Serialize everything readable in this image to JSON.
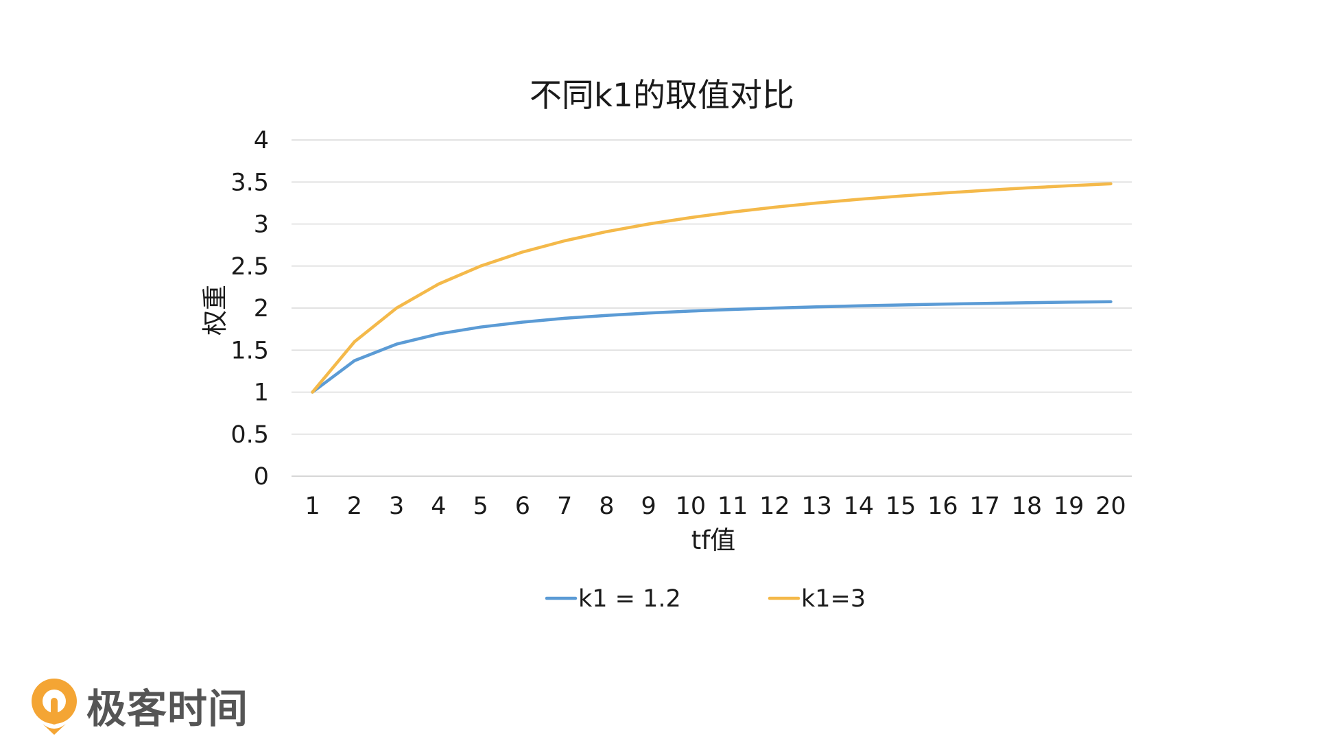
{
  "chart_data": {
    "type": "line",
    "title": "不同k1的取值对比",
    "xlabel": "tf值",
    "ylabel": "权重",
    "categories": [
      "1",
      "2",
      "3",
      "4",
      "5",
      "6",
      "7",
      "8",
      "9",
      "10",
      "11",
      "12",
      "13",
      "14",
      "15",
      "16",
      "17",
      "18",
      "19",
      "20"
    ],
    "ylim": [
      0,
      4
    ],
    "yticks": [
      "0",
      "0.5",
      "1",
      "1.5",
      "2",
      "2.5",
      "3",
      "3.5",
      "4"
    ],
    "grid": true,
    "legend_position": "bottom",
    "series": [
      {
        "name": "k1 = 1.2",
        "color": "#5b9bd5",
        "values": [
          1.0,
          1.375,
          1.571,
          1.692,
          1.774,
          1.833,
          1.878,
          1.913,
          1.941,
          1.964,
          1.984,
          2.0,
          2.014,
          2.026,
          2.037,
          2.047,
          2.055,
          2.063,
          2.07,
          2.076
        ]
      },
      {
        "name": "k1=3",
        "color": "#f4b94a",
        "values": [
          1.0,
          1.6,
          2.0,
          2.286,
          2.5,
          2.667,
          2.8,
          2.909,
          3.0,
          3.077,
          3.143,
          3.2,
          3.25,
          3.294,
          3.333,
          3.368,
          3.4,
          3.429,
          3.455,
          3.478
        ]
      }
    ]
  },
  "brand": {
    "name": "极客时间",
    "logo_icon": "geektime-logo-icon",
    "logo_color": "#f4a534"
  }
}
